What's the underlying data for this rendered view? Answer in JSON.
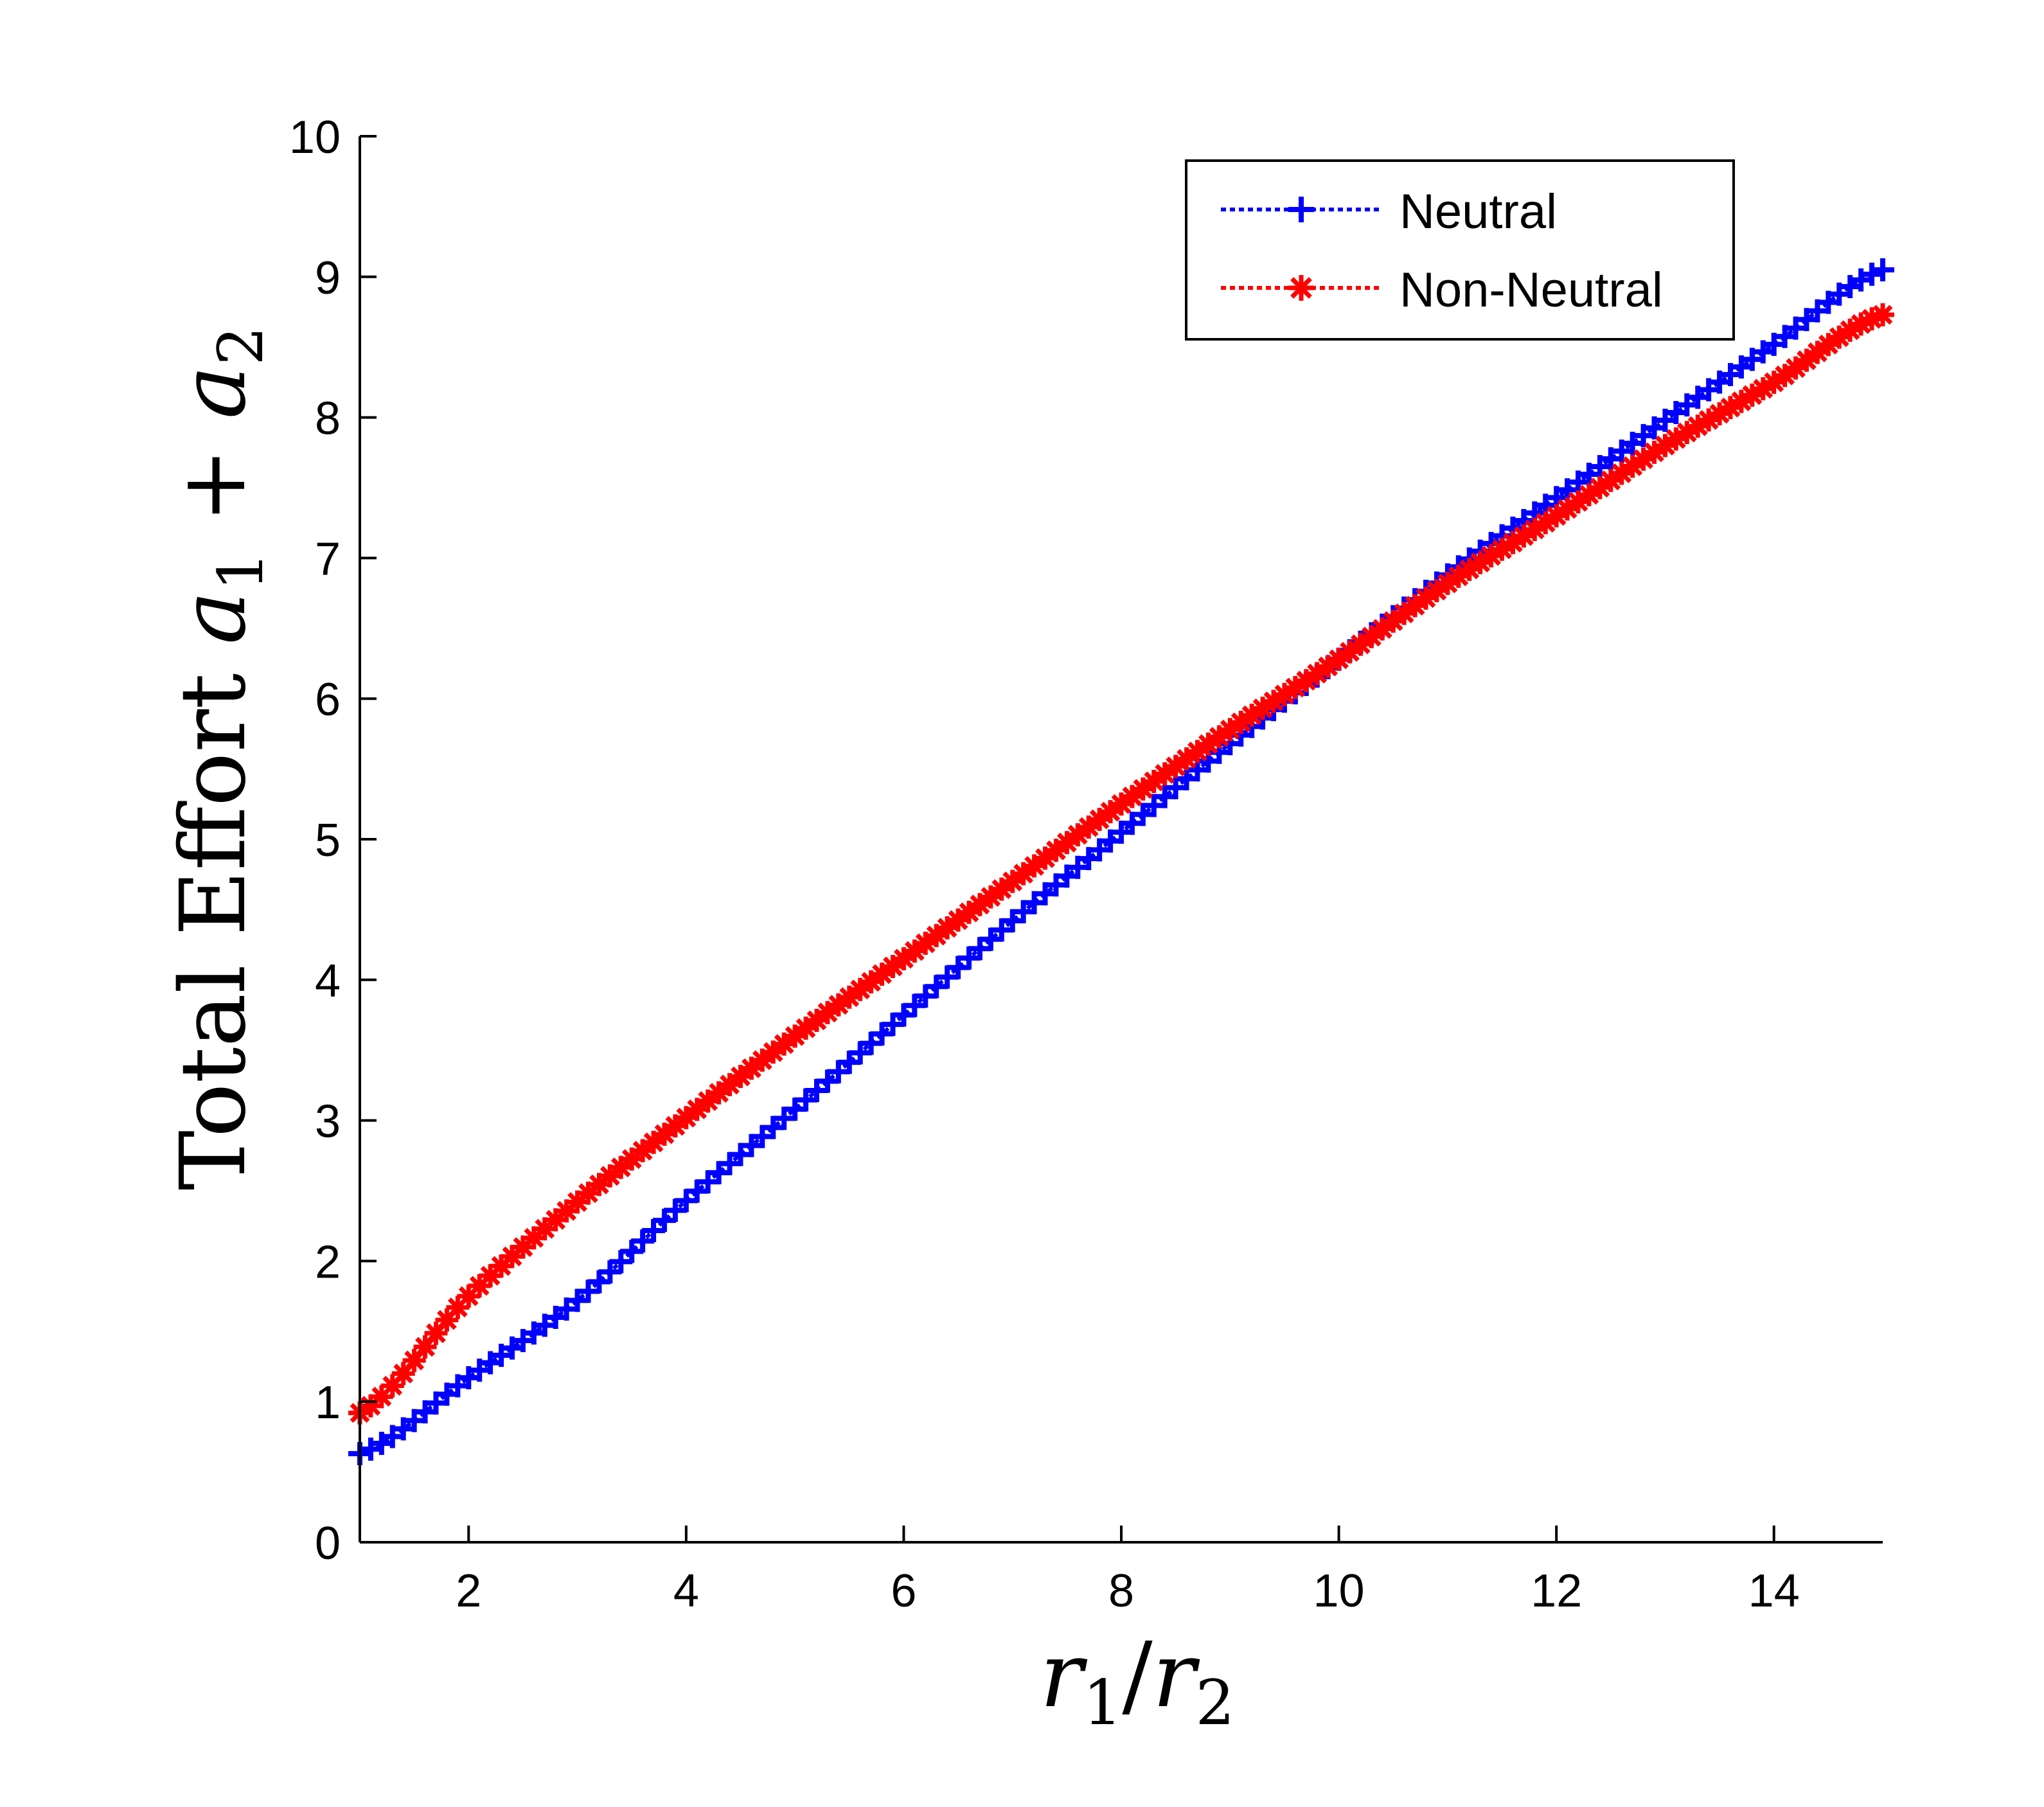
{
  "chart_data": {
    "type": "line",
    "title": "",
    "xlabel": {
      "base1": "r",
      "sub1": "1",
      "sep": "/",
      "base2": "r",
      "sub2": "2"
    },
    "ylabel": {
      "text": "Total Effort ",
      "base1": "a",
      "sub1": "1",
      "op": " + ",
      "base2": "a",
      "sub2": "2"
    },
    "xlim": [
      1,
      15
    ],
    "ylim": [
      0,
      10
    ],
    "xticks": [
      2,
      4,
      6,
      8,
      10,
      12,
      14
    ],
    "yticks": [
      0,
      1,
      2,
      3,
      4,
      5,
      6,
      7,
      8,
      9,
      10
    ],
    "grid": false,
    "legend_position": "top-right",
    "series": [
      {
        "name": "Neutral",
        "color": "#0000ff",
        "marker": "plus",
        "line_style": "dotted",
        "x": [
          1,
          2,
          3,
          4,
          5,
          6,
          7,
          8,
          9,
          10,
          11,
          12,
          13,
          14,
          15
        ],
        "y": [
          0.63,
          1.17,
          1.72,
          2.43,
          3.08,
          3.75,
          4.42,
          5.05,
          5.68,
          6.28,
          6.88,
          7.43,
          7.98,
          8.52,
          9.05
        ]
      },
      {
        "name": "Non-Neutral",
        "color": "#ff0000",
        "marker": "asterisk",
        "line_style": "dotted",
        "x": [
          1,
          2,
          3,
          4,
          5,
          6,
          7,
          8,
          9,
          10,
          11,
          12,
          13,
          14,
          15
        ],
        "y": [
          0.92,
          1.75,
          2.42,
          3.02,
          3.6,
          4.15,
          4.7,
          5.25,
          5.78,
          6.28,
          6.82,
          7.3,
          7.8,
          8.25,
          8.73
        ]
      }
    ]
  }
}
